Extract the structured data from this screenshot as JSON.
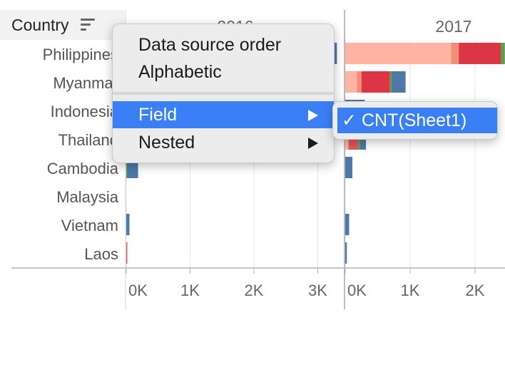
{
  "header": {
    "country_label": "Country",
    "sort_icon": "sort-descending-icon"
  },
  "chart_data": {
    "type": "bar",
    "orientation": "horizontal",
    "stacked": true,
    "row_dimension": "Country",
    "column_dimension": "Year",
    "categories": [
      "Philippines",
      "Myanmar",
      "Indonesia",
      "Thailand",
      "Cambodia",
      "Malaysia",
      "Vietnam",
      "Laos"
    ],
    "category_labels_visible": [
      "Philippines",
      "Myanmar",
      "Indonesia",
      "Thailand",
      "Cambodia",
      "Malaysia",
      "Vietnam",
      "Laos"
    ],
    "panes": [
      {
        "year": "2016",
        "header_visible": "2016",
        "xlim": [
          0,
          3300
        ],
        "ticks": [
          0,
          1000,
          2000,
          3000
        ],
        "tick_labels": [
          "0K",
          "1K",
          "2K",
          "3K"
        ],
        "bars": [
          {
            "country": "Philippines",
            "segments": [
              {
                "color": "#4e79a7",
                "value": 3300
              }
            ]
          },
          {
            "country": "Myanmar",
            "segments": []
          },
          {
            "country": "Indonesia",
            "segments": []
          },
          {
            "country": "Thailand",
            "segments": []
          },
          {
            "country": "Cambodia",
            "segments": [
              {
                "color": "#59a14f",
                "value": 15
              },
              {
                "color": "#4e79a7",
                "value": 170
              }
            ]
          },
          {
            "country": "Malaysia",
            "segments": []
          },
          {
            "country": "Vietnam",
            "segments": [
              {
                "color": "#4e79a7",
                "value": 50
              }
            ]
          },
          {
            "country": "Laos",
            "segments": [
              {
                "color": "#e15759",
                "value": 12
              }
            ]
          }
        ]
      },
      {
        "year": "2017",
        "header_visible": "2017",
        "xlim": [
          0,
          2500
        ],
        "ticks": [
          0,
          1000,
          2000
        ],
        "tick_labels": [
          "0K",
          "1K",
          "2K"
        ],
        "bars": [
          {
            "country": "Philippines",
            "segments": [
              {
                "color": "#ffb3a3",
                "value": 1630
              },
              {
                "color": "#f28e75",
                "value": 120
              },
              {
                "color": "#dc3545",
                "value": 650
              },
              {
                "color": "#59a14f",
                "value": 60
              }
            ]
          },
          {
            "country": "Myanmar",
            "segments": [
              {
                "color": "#ffb3a3",
                "value": 180
              },
              {
                "color": "#f28e75",
                "value": 70
              },
              {
                "color": "#dc3545",
                "value": 440
              },
              {
                "color": "#59a14f",
                "value": 30
              },
              {
                "color": "#4e79a7",
                "value": 210
              }
            ]
          },
          {
            "country": "Indonesia",
            "segments": [
              {
                "color": "#4e79a7",
                "value": 300
              }
            ]
          },
          {
            "country": "Thailand",
            "segments": [
              {
                "color": "#ffb3a3",
                "value": 50
              },
              {
                "color": "#e15759",
                "value": 150
              },
              {
                "color": "#59a14f",
                "value": 30
              },
              {
                "color": "#4e79a7",
                "value": 90
              }
            ]
          },
          {
            "country": "Cambodia",
            "segments": [
              {
                "color": "#4e79a7",
                "value": 110
              }
            ]
          },
          {
            "country": "Malaysia",
            "segments": []
          },
          {
            "country": "Vietnam",
            "segments": [
              {
                "color": "#4e79a7",
                "value": 60
              }
            ]
          },
          {
            "country": "Laos",
            "segments": [
              {
                "color": "#4e79a7",
                "value": 25
              }
            ]
          }
        ]
      }
    ],
    "grid": true,
    "gridline_color": "#e6e6e6",
    "axis_color": "#b3b3b3"
  },
  "context_menu": {
    "items": [
      {
        "label": "Data source order",
        "has_submenu": false,
        "active": false
      },
      {
        "label": "Alphabetic",
        "has_submenu": false,
        "active": false
      },
      {
        "label": "Field",
        "has_submenu": true,
        "active": true
      },
      {
        "label": "Nested",
        "has_submenu": true,
        "active": false
      }
    ],
    "active_color": "#3a7ff6",
    "submenu": {
      "parent": "Field",
      "items": [
        {
          "label": "CNT(Sheet1)",
          "checked": true,
          "check_glyph": "✓"
        }
      ]
    }
  }
}
